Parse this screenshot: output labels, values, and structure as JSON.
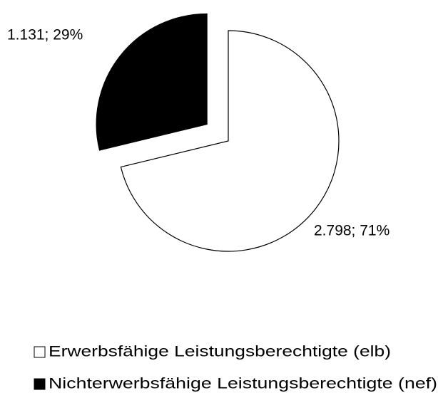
{
  "chart_data": {
    "type": "pie",
    "categories": [
      "Erwerbsfähige Leistungsberechtigte (elb)",
      "Nichterwerbsfähige Leistungsberechtigte (nef)"
    ],
    "values": [
      2798,
      1131
    ],
    "value_labels": [
      "2.798; 71%",
      "1.131; 29%"
    ],
    "colors": [
      "#ffffff",
      "#000000"
    ],
    "legend": "bottom"
  }
}
